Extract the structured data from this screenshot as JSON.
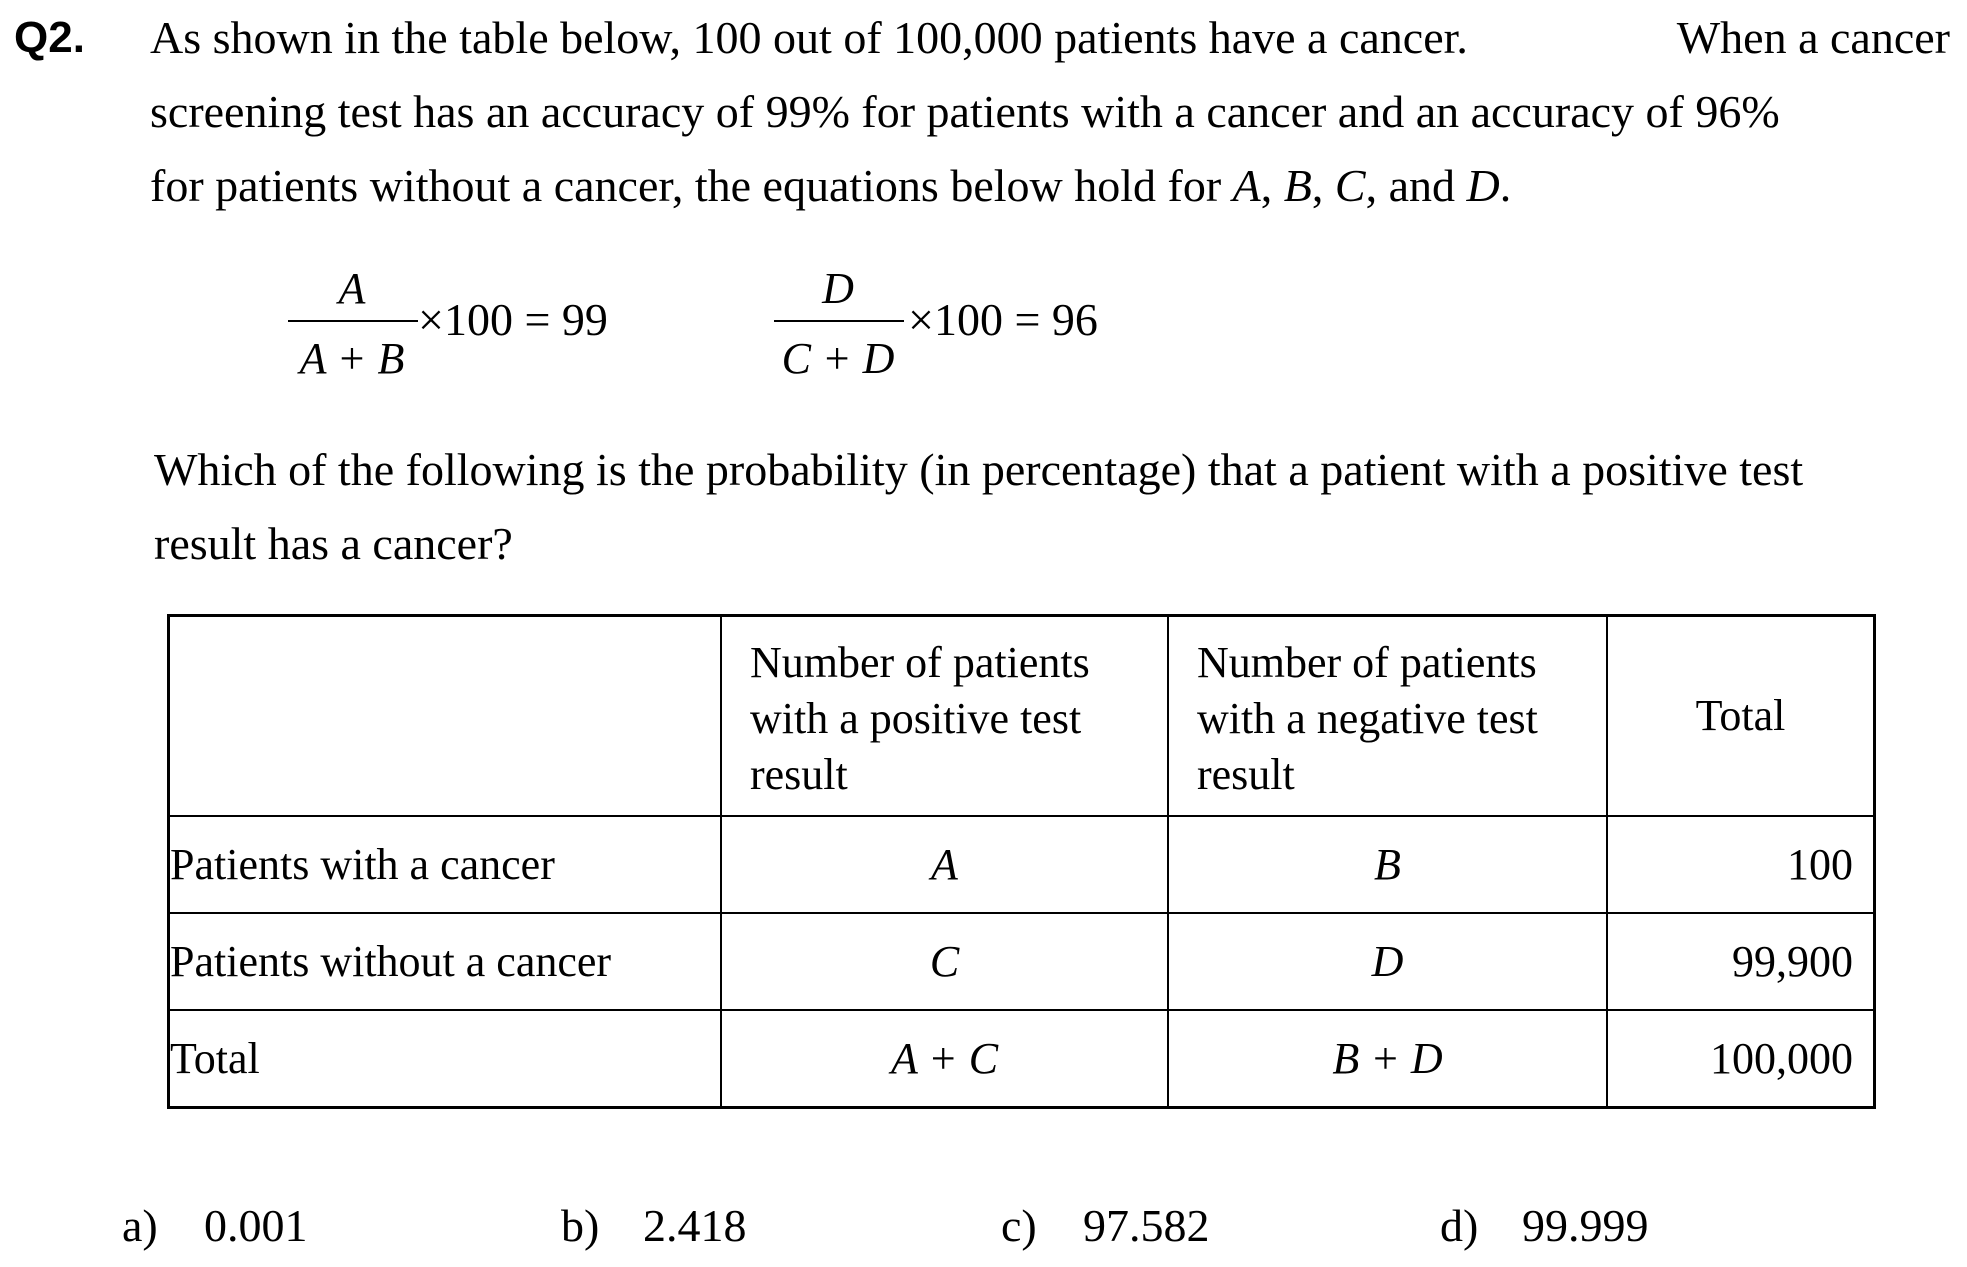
{
  "question": {
    "label": "Q2.",
    "para1": {
      "line1_left": "As shown in the table below, 100 out of 100,000 patients have a cancer.",
      "line1_right": "When a cancer",
      "line2": "screening test has an accuracy of 99% for patients with a cancer and an accuracy of 96%",
      "line3_prefix": "for patients without a cancer, the equations below hold for ",
      "var_a": "A",
      "sep1": ", ",
      "var_b": "B",
      "sep2": ", ",
      "var_c": "C",
      "sep3": ", and ",
      "var_d": "D",
      "end": "."
    },
    "equations": {
      "eq1": {
        "numerator": "A",
        "denominator": "A + B",
        "tail": "×100 = 99"
      },
      "eq2": {
        "numerator": "D",
        "denominator": "C + D",
        "tail": "×100 = 96"
      }
    },
    "para2": {
      "line1": "Which of the following is the probability (in percentage) that a patient with a positive test",
      "line2": "result has a cancer?"
    }
  },
  "table": {
    "headers": [
      "",
      "Number of patients\nwith a positive test\nresult",
      "Number of patients\nwith a negative test\nresult",
      "Total"
    ],
    "rows": [
      {
        "label": "Patients with a cancer",
        "positive": "A",
        "negative": "B",
        "total": "100"
      },
      {
        "label": "Patients without a cancer",
        "positive": "C",
        "negative": "D",
        "total": "99,900"
      },
      {
        "label": "Total",
        "positive": "A + C",
        "negative": "B + D",
        "total": "100,000"
      }
    ]
  },
  "options": [
    {
      "letter": "a)",
      "value": "0.001"
    },
    {
      "letter": "b)",
      "value": "2.418"
    },
    {
      "letter": "c)",
      "value": "97.582"
    },
    {
      "letter": "d)",
      "value": "99.999"
    }
  ]
}
